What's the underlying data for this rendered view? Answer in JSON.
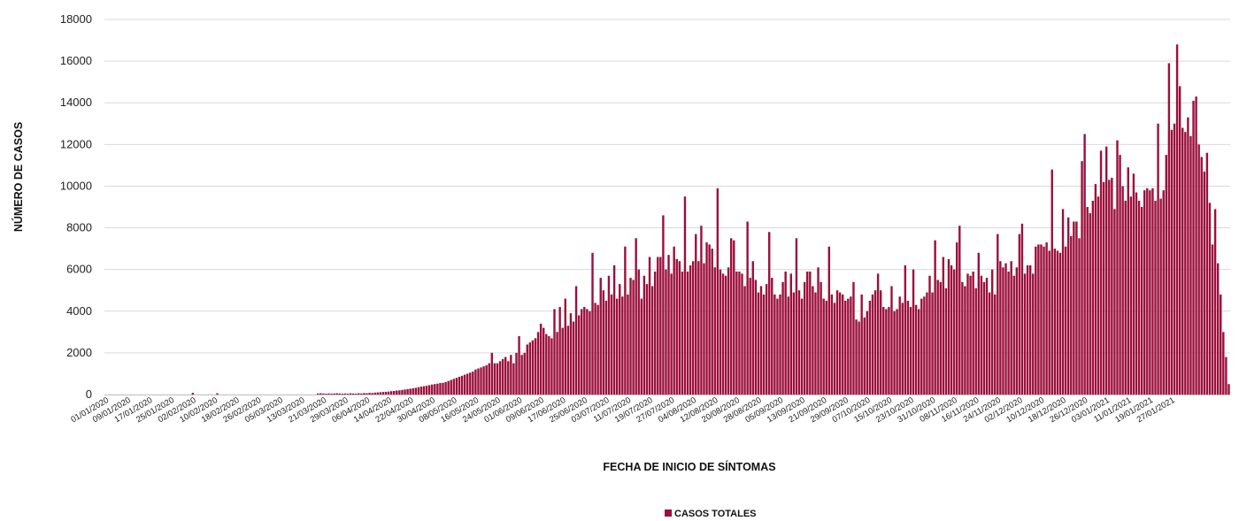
{
  "chart_data": {
    "type": "bar",
    "title": "",
    "xlabel": "FECHA DE INICIO DE SÍNTOMAS",
    "ylabel": "NÚMERO DE CASOS",
    "ylim": [
      0,
      18000
    ],
    "yticks": [
      0,
      2000,
      4000,
      6000,
      8000,
      10000,
      12000,
      14000,
      16000,
      18000
    ],
    "grid": true,
    "legend_position": "bottom",
    "bar_color": "#9b0f3c",
    "x_start": "01/01/2020",
    "x_end": "29/01/2021",
    "xtick_labels": [
      "01/01/2020",
      "09/01/2020",
      "17/01/2020",
      "25/01/2020",
      "02/02/2020",
      "10/02/2020",
      "18/02/2020",
      "26/02/2020",
      "05/03/2020",
      "13/03/2020",
      "21/03/2020",
      "29/03/2020",
      "06/04/2020",
      "14/04/2020",
      "22/04/2020",
      "30/04/2020",
      "08/05/2020",
      "16/05/2020",
      "24/05/2020",
      "01/06/2020",
      "09/06/2020",
      "17/06/2020",
      "25/06/2020",
      "03/07/2020",
      "11/07/2020",
      "19/07/2020",
      "27/07/2020",
      "04/08/2020",
      "12/08/2020",
      "20/08/2020",
      "28/08/2020",
      "05/09/2020",
      "13/09/2020",
      "21/09/2020",
      "29/09/2020",
      "07/10/2020",
      "15/10/2020",
      "23/10/2020",
      "31/10/2020",
      "08/11/2020",
      "16/11/2020",
      "24/11/2020",
      "02/12/2020",
      "10/12/2020",
      "18/12/2020",
      "26/12/2020",
      "03/01/2021",
      "11/01/2021",
      "19/01/2021",
      "27/01/2021"
    ],
    "series": [
      {
        "name": "CASOS TOTALES",
        "color": "#9b0f3c",
        "values": [
          0,
          0,
          0,
          0,
          0,
          0,
          0,
          0,
          0,
          0,
          0,
          0,
          0,
          0,
          0,
          0,
          0,
          0,
          0,
          0,
          0,
          0,
          0,
          0,
          0,
          0,
          0,
          0,
          0,
          0,
          0,
          0,
          80,
          0,
          0,
          0,
          0,
          0,
          0,
          0,
          0,
          60,
          0,
          0,
          0,
          0,
          0,
          0,
          0,
          0,
          0,
          0,
          0,
          0,
          0,
          0,
          0,
          0,
          0,
          0,
          0,
          0,
          0,
          0,
          0,
          0,
          0,
          0,
          0,
          0,
          0,
          0,
          0,
          0,
          0,
          0,
          0,
          0,
          50,
          60,
          50,
          40,
          50,
          40,
          50,
          60,
          50,
          40,
          50,
          40,
          60,
          50,
          40,
          60,
          50,
          70,
          60,
          80,
          70,
          90,
          100,
          110,
          120,
          130,
          140,
          160,
          170,
          190,
          200,
          220,
          240,
          260,
          280,
          300,
          320,
          350,
          380,
          400,
          420,
          450,
          480,
          500,
          520,
          550,
          560,
          600,
          650,
          700,
          750,
          800,
          850,
          900,
          950,
          1000,
          1050,
          1100,
          1200,
          1250,
          1300,
          1350,
          1400,
          1500,
          2000,
          1500,
          1500,
          1600,
          1700,
          1800,
          1600,
          1900,
          1500,
          2000,
          2800,
          1900,
          2000,
          2400,
          2500,
          2600,
          2700,
          3000,
          3400,
          3200,
          2900,
          2800,
          2700,
          4100,
          3000,
          4200,
          3200,
          4600,
          3300,
          3900,
          3500,
          5200,
          3800,
          4100,
          4200,
          4100,
          4000,
          6800,
          4400,
          4300,
          5600,
          5000,
          4500,
          5700,
          4800,
          6200,
          4600,
          5300,
          4700,
          7100,
          4800,
          5600,
          5500,
          7500,
          6000,
          4600,
          5700,
          5300,
          6600,
          5200,
          5900,
          6600,
          6600,
          8600,
          6000,
          6700,
          5800,
          7100,
          6500,
          6400,
          5900,
          9500,
          5900,
          6200,
          6400,
          7700,
          6400,
          8100,
          6300,
          7300,
          7200,
          7000,
          6100,
          9900,
          6000,
          5800,
          5700,
          6100,
          7500,
          7400,
          5900,
          5900,
          5800,
          5200,
          8300,
          5600,
          6400,
          5500,
          4900,
          5200,
          4800,
          5300,
          7800,
          5600,
          4800,
          4600,
          4800,
          5400,
          5900,
          4700,
          5800,
          4900,
          7500,
          5000,
          4600,
          5400,
          5900,
          5900,
          5200,
          4900,
          6100,
          5400,
          4600,
          4500,
          7100,
          4800,
          4400,
          5000,
          4900,
          4800,
          4500,
          4600,
          4700,
          5400,
          3600,
          3500,
          4800,
          3700,
          4000,
          4500,
          4800,
          5000,
          5800,
          5000,
          4200,
          4100,
          4200,
          5200,
          4000,
          4100,
          4700,
          4400,
          6200,
          4500,
          4200,
          6000,
          4300,
          4100,
          4600,
          4700,
          4900,
          5700,
          4900,
          7400,
          5500,
          5400,
          6600,
          5100,
          6500,
          6200,
          6000,
          7300,
          8100,
          5400,
          5200,
          5800,
          5700,
          5900,
          5100,
          6800,
          5700,
          5400,
          5600,
          4900,
          6000,
          4800,
          7700,
          6400,
          6100,
          6300,
          5900,
          6400,
          5700,
          6100,
          7700,
          8200,
          5800,
          6200,
          6200,
          5800,
          7100,
          7200,
          7200,
          7100,
          7300,
          6900,
          10800,
          7000,
          6900,
          6800,
          8900,
          7100,
          8500,
          7600,
          8300,
          8300,
          7500,
          11200,
          12500,
          9000,
          8700,
          9300,
          10100,
          9500,
          11700,
          10200,
          11900,
          10300,
          10400,
          8900,
          12200,
          11500,
          10000,
          9300,
          10900,
          9500,
          10600,
          9700,
          9300,
          9000,
          9800,
          9900,
          9800,
          9900,
          9300,
          13000,
          9400,
          9800,
          11500,
          15900,
          12700,
          13000,
          16800,
          14800,
          12800,
          12600,
          13300,
          12400,
          14100,
          14300,
          12000,
          11400,
          10700,
          11600,
          9200,
          7200,
          8900,
          6300,
          4800,
          3000,
          1800,
          500
        ]
      }
    ]
  }
}
